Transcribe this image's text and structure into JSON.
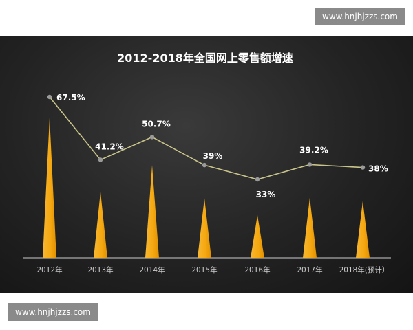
{
  "watermark": {
    "top": "www.hnjhjzzs.com",
    "bottom": "www.hnjhjzzs.com"
  },
  "chart_data": {
    "type": "bar",
    "title": "2012-2018年全国网上零售额增速",
    "categories": [
      "2012年",
      "2013年",
      "2014年",
      "2015年",
      "2016年",
      "2017年",
      "2018年(预计）"
    ],
    "values": [
      67.5,
      41.2,
      50.7,
      39,
      33,
      39.2,
      38
    ],
    "labels": [
      "67.5%",
      "41.2%",
      "50.7%",
      "39%",
      "33%",
      "39.2%",
      "38%"
    ],
    "series": [
      {
        "values": [
          67.5,
          41.2,
          50.7,
          39,
          33,
          39.2,
          38
        ]
      }
    ],
    "colors": {
      "bar": "#f5a912",
      "line": "#c9c58a",
      "marker": "#9a9a9a",
      "text": "#ffffff",
      "axis": "#cccccc"
    }
  }
}
